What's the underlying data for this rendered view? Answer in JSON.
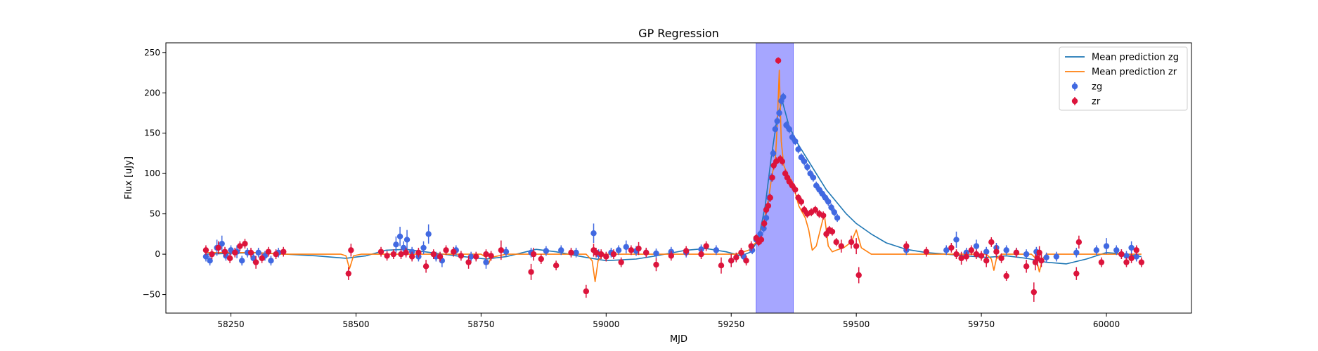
{
  "chart_data": {
    "type": "scatter",
    "title": "GP Regression",
    "xlabel": "MJD",
    "ylabel": "Flux [uJy]",
    "xlim": [
      58120,
      60170
    ],
    "ylim": [
      -73,
      262
    ],
    "xticks": [
      58250,
      58500,
      58750,
      59000,
      59250,
      59500,
      59750,
      60000
    ],
    "yticks": [
      -50,
      0,
      50,
      100,
      150,
      200,
      250
    ],
    "grid": false,
    "legend_position": "top-right",
    "highlight_span": {
      "x": [
        59300,
        59374
      ],
      "color": "#a6a6ff"
    },
    "series": [
      {
        "name": "Mean prediction zg",
        "kind": "line",
        "color": "#1f77b4",
        "x": [
          58200,
          58300,
          58360,
          58420,
          58480,
          58520,
          58560,
          58600,
          58650,
          58700,
          58760,
          58800,
          58860,
          58900,
          58960,
          59000,
          59060,
          59100,
          59160,
          59200,
          59240,
          59270,
          59290,
          59305,
          59318,
          59330,
          59342,
          59352,
          59365,
          59380,
          59400,
          59420,
          59440,
          59460,
          59480,
          59500,
          59530,
          59560,
          59600,
          59640,
          59680,
          59720,
          59760,
          59800,
          59840,
          59880,
          59920,
          59960,
          60000,
          60040,
          60070
        ],
        "y": [
          0,
          2,
          0,
          -2,
          -5,
          -2,
          5,
          6,
          2,
          -2,
          -6,
          -3,
          6,
          3,
          -4,
          -8,
          -6,
          -2,
          5,
          7,
          3,
          -2,
          3,
          20,
          60,
          120,
          170,
          190,
          160,
          140,
          120,
          100,
          80,
          65,
          50,
          38,
          25,
          14,
          6,
          2,
          0,
          -2,
          -4,
          -2,
          -5,
          -10,
          -12,
          -6,
          2,
          0,
          -3
        ]
      },
      {
        "name": "Mean prediction zr",
        "kind": "line",
        "color": "#ff7f0e",
        "x": [
          58200,
          58300,
          58350,
          58400,
          58470,
          58480,
          58487,
          58495,
          58510,
          58600,
          58650,
          58700,
          58750,
          58760,
          58765,
          58770,
          58800,
          58900,
          58960,
          58972,
          58978,
          58984,
          58995,
          59050,
          59100,
          59200,
          59260,
          59285,
          59300,
          59315,
          59325,
          59332,
          59338,
          59342,
          59346,
          59350,
          59355,
          59362,
          59372,
          59385,
          59398,
          59405,
          59412,
          59420,
          59428,
          59436,
          59444,
          59452,
          59460,
          59475,
          59490,
          59500,
          59510,
          59530,
          59560,
          59600,
          59650,
          59700,
          59760,
          59770,
          59775,
          59780,
          59790,
          59800,
          59850,
          59860,
          59866,
          59872,
          59880,
          59950,
          60000,
          60070
        ],
        "y": [
          2,
          2,
          0,
          0,
          0,
          -2,
          -18,
          -2,
          0,
          0,
          0,
          0,
          0,
          -4,
          -12,
          -4,
          0,
          0,
          0,
          -8,
          -34,
          -8,
          0,
          0,
          0,
          0,
          0,
          5,
          15,
          40,
          70,
          100,
          115,
          160,
          228,
          140,
          110,
          100,
          90,
          60,
          45,
          30,
          5,
          10,
          30,
          50,
          10,
          3,
          5,
          8,
          15,
          30,
          8,
          0,
          0,
          0,
          0,
          0,
          0,
          -6,
          -20,
          -6,
          0,
          0,
          0,
          -6,
          -22,
          -6,
          0,
          0,
          0,
          0
        ]
      },
      {
        "name": "zg",
        "kind": "errorbar",
        "color": "#4169e1",
        "x": [
          58200,
          58208,
          58222,
          58232,
          58240,
          58250,
          58262,
          58272,
          58283,
          58295,
          58305,
          58318,
          58330,
          58345,
          58580,
          58588,
          58595,
          58602,
          58612,
          58625,
          58635,
          58645,
          58660,
          58672,
          58700,
          58730,
          58760,
          58800,
          58850,
          58880,
          58910,
          58940,
          58975,
          58985,
          59010,
          59025,
          59040,
          59060,
          59080,
          59100,
          59130,
          59160,
          59190,
          59220,
          59250,
          59275,
          59292,
          59300,
          59308,
          59315,
          59320,
          59326,
          59330,
          59334,
          59338,
          59342,
          59346,
          59350,
          59354,
          59360,
          59366,
          59372,
          59378,
          59384,
          59390,
          59396,
          59402,
          59408,
          59414,
          59420,
          59426,
          59432,
          59438,
          59444,
          59450,
          59456,
          59462,
          59600,
          59680,
          59700,
          59720,
          59740,
          59760,
          59780,
          59800,
          59820,
          59840,
          59860,
          59880,
          59900,
          59940,
          59980,
          60000,
          60020,
          60030,
          60040,
          60050,
          60060
        ],
        "y": [
          -3,
          -8,
          8,
          13,
          -2,
          5,
          3,
          -8,
          2,
          -5,
          2,
          -2,
          -8,
          2,
          12,
          22,
          8,
          18,
          3,
          -3,
          8,
          25,
          -3,
          -8,
          5,
          -3,
          -10,
          3,
          2,
          4,
          5,
          2,
          26,
          0,
          2,
          5,
          9,
          4,
          2,
          1,
          3,
          2,
          6,
          5,
          -8,
          -3,
          5,
          18,
          25,
          32,
          45,
          70,
          95,
          125,
          155,
          165,
          175,
          190,
          195,
          160,
          155,
          145,
          140,
          130,
          120,
          115,
          108,
          100,
          95,
          85,
          80,
          75,
          70,
          65,
          58,
          52,
          45,
          5,
          5,
          18,
          2,
          10,
          3,
          8,
          5,
          2,
          0,
          3,
          -4,
          -3,
          2,
          5,
          10,
          5,
          0,
          -2,
          8,
          -3
        ],
        "err": [
          6,
          6,
          10,
          10,
          6,
          6,
          8,
          6,
          6,
          6,
          6,
          6,
          6,
          6,
          10,
          12,
          8,
          12,
          6,
          6,
          8,
          12,
          6,
          8,
          6,
          6,
          8,
          6,
          6,
          6,
          6,
          6,
          12,
          6,
          6,
          6,
          8,
          6,
          6,
          6,
          6,
          6,
          6,
          6,
          8,
          6,
          5,
          5,
          5,
          5,
          5,
          5,
          5,
          5,
          5,
          5,
          5,
          5,
          5,
          5,
          5,
          5,
          5,
          5,
          5,
          5,
          5,
          5,
          5,
          5,
          5,
          5,
          5,
          5,
          5,
          5,
          5,
          6,
          6,
          10,
          6,
          8,
          6,
          6,
          6,
          6,
          6,
          6,
          6,
          6,
          6,
          6,
          10,
          6,
          6,
          6,
          8,
          6
        ]
      },
      {
        "name": "zr",
        "kind": "errorbar",
        "color": "#dc143c",
        "x": [
          58200,
          58212,
          58225,
          58238,
          58248,
          58258,
          58268,
          58278,
          58290,
          58300,
          58312,
          58325,
          58340,
          58355,
          58485,
          58490,
          58550,
          58562,
          58575,
          58590,
          58600,
          58612,
          58625,
          58640,
          58655,
          58668,
          58680,
          58695,
          58710,
          58725,
          58740,
          58760,
          58770,
          58790,
          58850,
          58855,
          58870,
          58900,
          58930,
          58960,
          58975,
          58980,
          58990,
          59000,
          59015,
          59030,
          59050,
          59065,
          59080,
          59100,
          59130,
          59160,
          59190,
          59200,
          59230,
          59250,
          59260,
          59270,
          59280,
          59290,
          59300,
          59305,
          59310,
          59316,
          59320,
          59324,
          59328,
          59332,
          59335,
          59340,
          59344,
          59348,
          59352,
          59358,
          59362,
          59366,
          59372,
          59378,
          59384,
          59390,
          59396,
          59402,
          59410,
          59418,
          59426,
          59434,
          59440,
          59446,
          59452,
          59460,
          59470,
          59490,
          59500,
          59505,
          59600,
          59640,
          59690,
          59700,
          59710,
          59720,
          59730,
          59740,
          59750,
          59760,
          59770,
          59780,
          59790,
          59800,
          59820,
          59840,
          59855,
          59858,
          59862,
          59866,
          59870,
          59940,
          59945,
          59990,
          60030,
          60040,
          60050,
          60060,
          60070
        ],
        "y": [
          5,
          0,
          8,
          3,
          -5,
          2,
          10,
          13,
          2,
          -10,
          -5,
          3,
          0,
          3,
          -24,
          5,
          3,
          -2,
          0,
          0,
          2,
          -3,
          2,
          -15,
          0,
          -3,
          5,
          3,
          -2,
          -10,
          -3,
          0,
          -2,
          5,
          -22,
          0,
          -6,
          -14,
          2,
          -46,
          5,
          2,
          0,
          -3,
          0,
          -10,
          5,
          7,
          2,
          -13,
          -2,
          4,
          0,
          10,
          -14,
          -8,
          -4,
          2,
          -8,
          10,
          20,
          15,
          18,
          38,
          55,
          60,
          70,
          95,
          110,
          115,
          240,
          118,
          115,
          100,
          95,
          90,
          85,
          80,
          70,
          65,
          55,
          50,
          52,
          55,
          50,
          48,
          25,
          30,
          28,
          15,
          10,
          15,
          10,
          -26,
          10,
          3,
          8,
          0,
          -5,
          -3,
          5,
          0,
          -2,
          -8,
          15,
          3,
          -5,
          -27,
          2,
          -15,
          -47,
          -10,
          -5,
          2,
          -8,
          -24,
          15,
          -10,
          0,
          -10,
          -5,
          5,
          -10
        ],
        "err": [
          6,
          6,
          8,
          6,
          6,
          6,
          6,
          6,
          6,
          8,
          6,
          6,
          6,
          6,
          8,
          8,
          6,
          6,
          6,
          6,
          6,
          6,
          6,
          8,
          6,
          6,
          6,
          6,
          6,
          8,
          6,
          6,
          6,
          12,
          10,
          8,
          6,
          6,
          6,
          8,
          8,
          6,
          6,
          6,
          6,
          6,
          6,
          8,
          6,
          8,
          6,
          6,
          6,
          6,
          10,
          8,
          6,
          6,
          6,
          6,
          5,
          5,
          5,
          5,
          5,
          5,
          5,
          5,
          5,
          5,
          4,
          5,
          5,
          5,
          5,
          5,
          5,
          5,
          5,
          5,
          5,
          5,
          5,
          5,
          5,
          5,
          5,
          5,
          5,
          5,
          8,
          8,
          10,
          10,
          6,
          6,
          6,
          6,
          8,
          6,
          6,
          6,
          6,
          8,
          6,
          8,
          6,
          6,
          6,
          8,
          12,
          10,
          10,
          8,
          8,
          8,
          8,
          6,
          6,
          6,
          6,
          6,
          6
        ]
      }
    ]
  }
}
